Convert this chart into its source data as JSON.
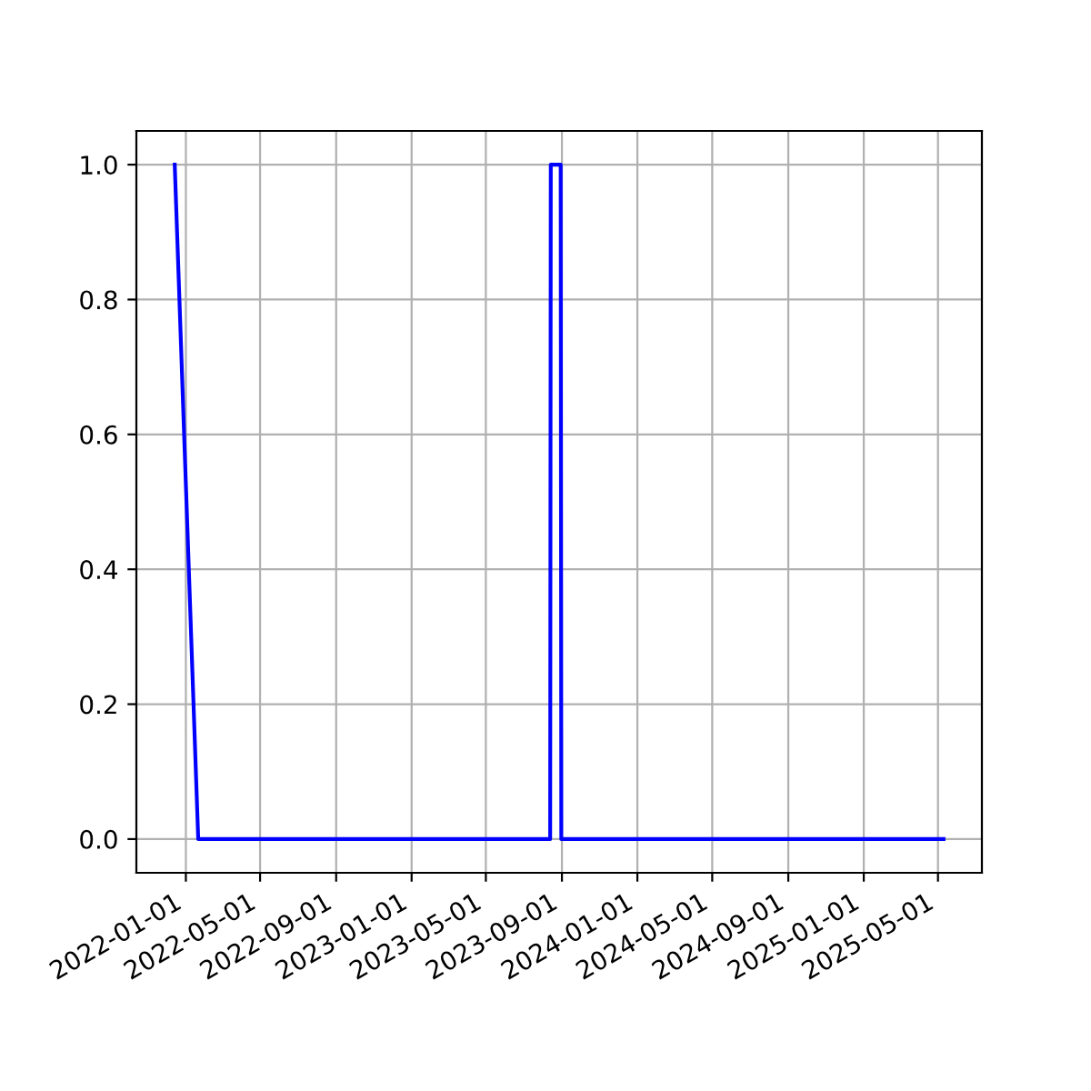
{
  "chart_data": {
    "type": "line",
    "x": [
      "2021-12-14",
      "2022-01-21",
      "2023-08-13",
      "2023-08-14",
      "2023-08-30",
      "2023-08-31",
      "2025-05-10"
    ],
    "series": [
      {
        "color": "#0000ff",
        "values": [
          1,
          0,
          0,
          1,
          1,
          0,
          0
        ]
      }
    ],
    "xlim": [
      "2021-10-13",
      "2025-07-11"
    ],
    "xticks": [
      "2022-01-01",
      "2022-05-01",
      "2022-09-01",
      "2023-01-01",
      "2023-05-01",
      "2023-09-01",
      "2024-01-01",
      "2024-05-01",
      "2024-09-01",
      "2025-01-01",
      "2025-05-01"
    ],
    "ylim": [
      -0.05,
      1.05
    ],
    "yticks": [
      {
        "value": 0,
        "label": "0.0"
      },
      {
        "value": 0.2,
        "label": "0.2"
      },
      {
        "value": 0.4,
        "label": "0.4"
      },
      {
        "value": 0.6,
        "label": "0.6"
      },
      {
        "value": 0.8,
        "label": "0.8"
      },
      {
        "value": 1,
        "label": "1.0"
      }
    ],
    "grid": true,
    "legend": false,
    "marker": "none",
    "line_style": "solid"
  }
}
